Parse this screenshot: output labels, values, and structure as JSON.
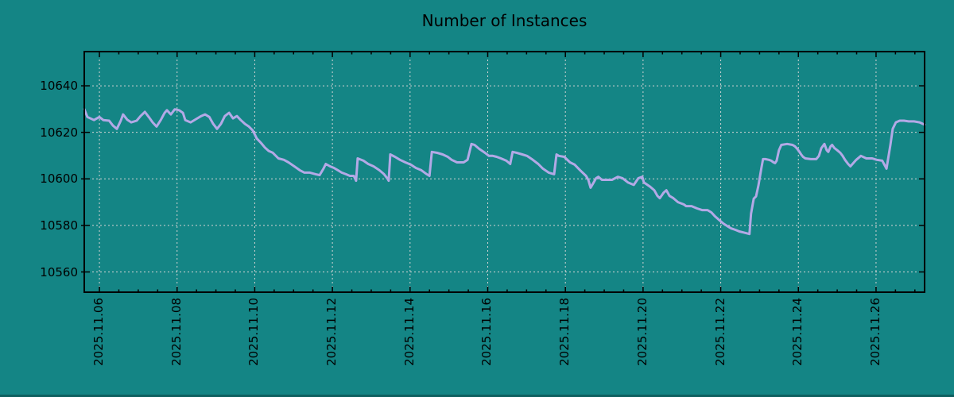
{
  "title": "Number of Instances",
  "colors": {
    "background": "#148585",
    "line": "#b3a9e6",
    "grid": "#d4d4d4",
    "axis": "#000000",
    "text": "#000000"
  },
  "chart_data": {
    "type": "line",
    "title": "Number of Instances",
    "xlabel": "",
    "ylabel": "",
    "legend_position": "none",
    "grid": true,
    "x_unit": "day of November 2025 (fractional)",
    "xlim_days": [
      5.61,
      27.25
    ],
    "ylim": [
      10551.3,
      10654.7
    ],
    "y_ticks": [
      10560,
      10580,
      10600,
      10620,
      10640
    ],
    "x_major_ticks_days": [
      6,
      8,
      10,
      12,
      14,
      16,
      18,
      20,
      22,
      24,
      26
    ],
    "x_tick_labels": [
      "2025.11.06",
      "2025.11.08",
      "2025.11.10",
      "2025.11.12",
      "2025.11.14",
      "2025.11.16",
      "2025.11.18",
      "2025.11.20",
      "2025.11.22",
      "2025.11.24",
      "2025.11.26"
    ],
    "x_minor_step_days": 0.5,
    "series_name": "instances",
    "points": [
      [
        5.61,
        10630.0
      ],
      [
        5.69,
        10626.6
      ],
      [
        5.86,
        10625.3
      ],
      [
        6.0,
        10626.6
      ],
      [
        6.1,
        10625.3
      ],
      [
        6.25,
        10625.0
      ],
      [
        6.35,
        10622.9
      ],
      [
        6.45,
        10621.5
      ],
      [
        6.55,
        10625.0
      ],
      [
        6.61,
        10627.7
      ],
      [
        6.72,
        10625.4
      ],
      [
        6.82,
        10624.3
      ],
      [
        6.96,
        10625.0
      ],
      [
        7.06,
        10627.0
      ],
      [
        7.17,
        10628.8
      ],
      [
        7.27,
        10626.6
      ],
      [
        7.37,
        10624.3
      ],
      [
        7.47,
        10622.5
      ],
      [
        7.58,
        10625.3
      ],
      [
        7.68,
        10628.4
      ],
      [
        7.74,
        10629.5
      ],
      [
        7.84,
        10627.7
      ],
      [
        7.94,
        10629.9
      ],
      [
        8.05,
        10629.5
      ],
      [
        8.15,
        10628.4
      ],
      [
        8.21,
        10625.3
      ],
      [
        8.35,
        10624.3
      ],
      [
        8.42,
        10625.0
      ],
      [
        8.52,
        10626.0
      ],
      [
        8.62,
        10627.0
      ],
      [
        8.72,
        10627.7
      ],
      [
        8.83,
        10626.6
      ],
      [
        8.93,
        10623.6
      ],
      [
        9.03,
        10621.5
      ],
      [
        9.13,
        10623.6
      ],
      [
        9.23,
        10627.0
      ],
      [
        9.34,
        10628.4
      ],
      [
        9.44,
        10626.0
      ],
      [
        9.54,
        10627.0
      ],
      [
        9.64,
        10625.3
      ],
      [
        9.75,
        10623.6
      ],
      [
        9.85,
        10622.5
      ],
      [
        9.95,
        10620.8
      ],
      [
        10.05,
        10617.4
      ],
      [
        10.16,
        10615.5
      ],
      [
        10.26,
        10613.5
      ],
      [
        10.36,
        10612.0
      ],
      [
        10.46,
        10611.3
      ],
      [
        10.61,
        10608.8
      ],
      [
        10.75,
        10608.2
      ],
      [
        10.87,
        10607.1
      ],
      [
        11.02,
        10605.4
      ],
      [
        11.16,
        10603.7
      ],
      [
        11.28,
        10602.7
      ],
      [
        11.42,
        10602.7
      ],
      [
        11.57,
        10602.0
      ],
      [
        11.67,
        10601.6
      ],
      [
        11.77,
        10604.4
      ],
      [
        11.83,
        10606.4
      ],
      [
        11.94,
        10605.4
      ],
      [
        12.04,
        10604.7
      ],
      [
        12.14,
        10603.7
      ],
      [
        12.24,
        10602.7
      ],
      [
        12.35,
        10602.0
      ],
      [
        12.45,
        10601.3
      ],
      [
        12.55,
        10601.3
      ],
      [
        12.61,
        10599.2
      ],
      [
        12.65,
        10608.8
      ],
      [
        12.8,
        10607.8
      ],
      [
        12.92,
        10606.4
      ],
      [
        13.06,
        10605.4
      ],
      [
        13.21,
        10603.7
      ],
      [
        13.33,
        10602.0
      ],
      [
        13.41,
        10600.3
      ],
      [
        13.45,
        10599.2
      ],
      [
        13.49,
        10610.5
      ],
      [
        13.61,
        10609.5
      ],
      [
        13.74,
        10608.2
      ],
      [
        13.88,
        10607.1
      ],
      [
        14.02,
        10606.1
      ],
      [
        14.15,
        10604.7
      ],
      [
        14.29,
        10603.7
      ],
      [
        14.43,
        10602.0
      ],
      [
        14.5,
        10601.3
      ],
      [
        14.56,
        10611.6
      ],
      [
        14.7,
        10611.2
      ],
      [
        14.84,
        10610.5
      ],
      [
        14.97,
        10609.5
      ],
      [
        15.07,
        10608.2
      ],
      [
        15.21,
        10607.1
      ],
      [
        15.38,
        10607.1
      ],
      [
        15.48,
        10608.2
      ],
      [
        15.58,
        10615.0
      ],
      [
        15.66,
        10614.6
      ],
      [
        15.78,
        10612.9
      ],
      [
        15.93,
        10611.2
      ],
      [
        16.03,
        10609.9
      ],
      [
        16.13,
        10609.9
      ],
      [
        16.23,
        10609.5
      ],
      [
        16.34,
        10608.8
      ],
      [
        16.48,
        10607.8
      ],
      [
        16.58,
        10606.4
      ],
      [
        16.64,
        10611.6
      ],
      [
        16.75,
        10611.2
      ],
      [
        16.89,
        10610.5
      ],
      [
        17.01,
        10609.9
      ],
      [
        17.16,
        10608.2
      ],
      [
        17.3,
        10606.4
      ],
      [
        17.42,
        10604.4
      ],
      [
        17.57,
        10602.7
      ],
      [
        17.71,
        10602.0
      ],
      [
        17.77,
        10610.5
      ],
      [
        17.83,
        10609.9
      ],
      [
        17.97,
        10609.5
      ],
      [
        18.12,
        10607.1
      ],
      [
        18.24,
        10606.1
      ],
      [
        18.38,
        10603.7
      ],
      [
        18.53,
        10601.3
      ],
      [
        18.59,
        10599.6
      ],
      [
        18.65,
        10596.2
      ],
      [
        18.73,
        10598.5
      ],
      [
        18.79,
        10600.3
      ],
      [
        18.85,
        10600.9
      ],
      [
        18.94,
        10599.6
      ],
      [
        19.06,
        10599.6
      ],
      [
        19.2,
        10599.6
      ],
      [
        19.35,
        10600.9
      ],
      [
        19.47,
        10600.3
      ],
      [
        19.61,
        10598.5
      ],
      [
        19.76,
        10597.4
      ],
      [
        19.88,
        10600.3
      ],
      [
        19.98,
        10600.9
      ],
      [
        20.02,
        10598.5
      ],
      [
        20.17,
        10596.8
      ],
      [
        20.29,
        10595.1
      ],
      [
        20.37,
        10592.7
      ],
      [
        20.43,
        10591.7
      ],
      [
        20.53,
        10594.1
      ],
      [
        20.6,
        10595.1
      ],
      [
        20.68,
        10592.7
      ],
      [
        20.78,
        10591.7
      ],
      [
        20.9,
        10590.0
      ],
      [
        21.05,
        10589.0
      ],
      [
        21.11,
        10588.3
      ],
      [
        21.25,
        10588.3
      ],
      [
        21.39,
        10587.3
      ],
      [
        21.52,
        10586.6
      ],
      [
        21.66,
        10586.6
      ],
      [
        21.76,
        10585.6
      ],
      [
        21.86,
        10583.8
      ],
      [
        21.97,
        10582.2
      ],
      [
        22.07,
        10580.8
      ],
      [
        22.17,
        10579.7
      ],
      [
        22.27,
        10578.7
      ],
      [
        22.38,
        10578.1
      ],
      [
        22.48,
        10577.4
      ],
      [
        22.58,
        10577.0
      ],
      [
        22.68,
        10576.6
      ],
      [
        22.74,
        10576.3
      ],
      [
        22.78,
        10585.0
      ],
      [
        22.85,
        10591.5
      ],
      [
        22.91,
        10592.5
      ],
      [
        22.97,
        10597.0
      ],
      [
        23.05,
        10605.0
      ],
      [
        23.09,
        10608.5
      ],
      [
        23.15,
        10608.5
      ],
      [
        23.24,
        10608.2
      ],
      [
        23.3,
        10607.8
      ],
      [
        23.36,
        10607.1
      ],
      [
        23.4,
        10606.8
      ],
      [
        23.44,
        10607.8
      ],
      [
        23.5,
        10612.3
      ],
      [
        23.56,
        10614.6
      ],
      [
        23.71,
        10615.0
      ],
      [
        23.85,
        10614.6
      ],
      [
        23.91,
        10614.0
      ],
      [
        23.97,
        10612.9
      ],
      [
        24.03,
        10611.6
      ],
      [
        24.07,
        10610.5
      ],
      [
        24.12,
        10609.5
      ],
      [
        24.18,
        10608.8
      ],
      [
        24.32,
        10608.5
      ],
      [
        24.46,
        10608.5
      ],
      [
        24.53,
        10609.9
      ],
      [
        24.59,
        10613.2
      ],
      [
        24.67,
        10615.0
      ],
      [
        24.73,
        10612.3
      ],
      [
        24.77,
        10611.6
      ],
      [
        24.83,
        10614.0
      ],
      [
        24.87,
        10614.6
      ],
      [
        24.93,
        10613.2
      ],
      [
        25.0,
        10612.3
      ],
      [
        25.08,
        10611.2
      ],
      [
        25.14,
        10609.9
      ],
      [
        25.2,
        10608.2
      ],
      [
        25.28,
        10606.4
      ],
      [
        25.34,
        10605.4
      ],
      [
        25.49,
        10608.2
      ],
      [
        25.61,
        10609.9
      ],
      [
        25.75,
        10608.8
      ],
      [
        25.9,
        10608.8
      ],
      [
        26.02,
        10608.2
      ],
      [
        26.16,
        10607.8
      ],
      [
        26.27,
        10604.4
      ],
      [
        26.37,
        10614.6
      ],
      [
        26.43,
        10621.5
      ],
      [
        26.51,
        10624.3
      ],
      [
        26.61,
        10625.0
      ],
      [
        26.72,
        10625.0
      ],
      [
        26.84,
        10624.7
      ],
      [
        26.98,
        10624.7
      ],
      [
        27.12,
        10624.3
      ],
      [
        27.25,
        10623.3
      ]
    ]
  }
}
